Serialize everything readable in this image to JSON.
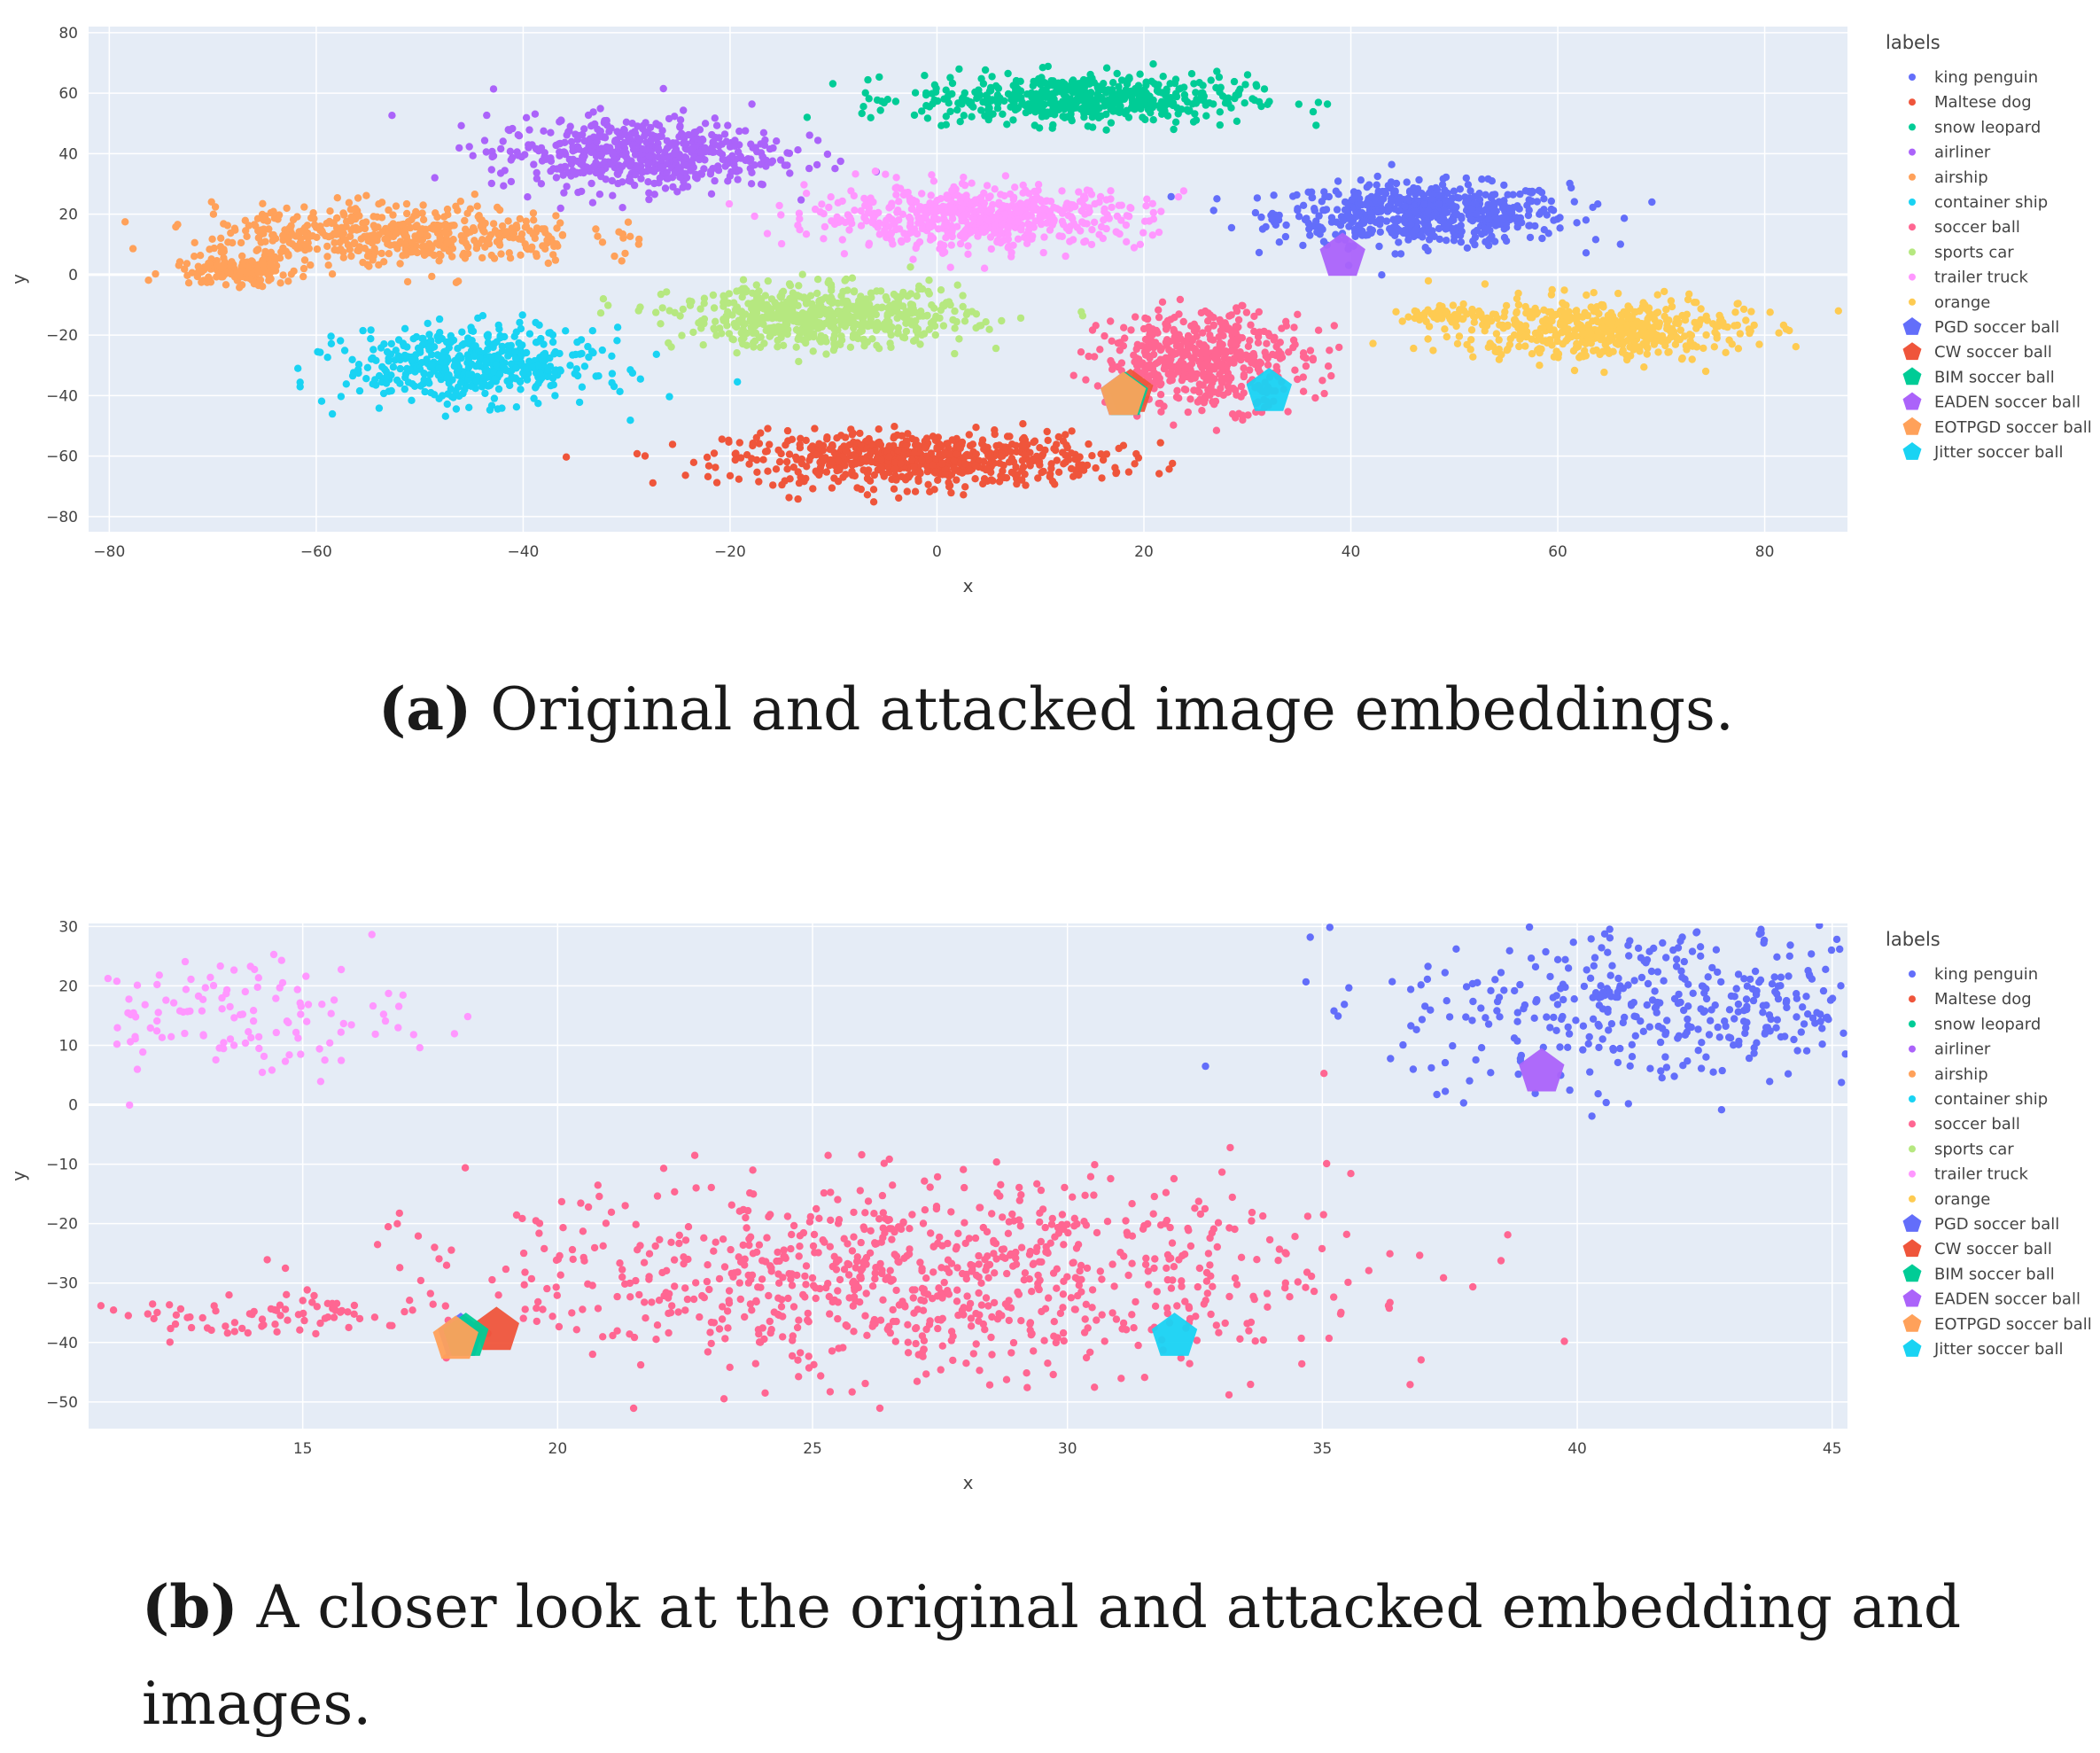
{
  "colors": {
    "king penguin": "#636efa",
    "Maltese dog": "#ef553b",
    "snow leopard": "#00cc96",
    "airliner": "#ab63fa",
    "airship": "#ffa15a",
    "container ship": "#19d3f3",
    "soccer ball": "#ff6692",
    "sports car": "#b6e880",
    "trailer truck": "#ff97ff",
    "orange": "#fecb52",
    "PGD soccer ball": "#636efa",
    "CW soccer ball": "#ef553b",
    "BIM soccer ball": "#00cc96",
    "EADEN soccer ball": "#ab63fa",
    "EOTPGD soccer ball": "#ffa15a",
    "Jitter soccer ball": "#19d3f3"
  },
  "captions": {
    "a": {
      "label": "(a)",
      "text": "Original and attacked image embeddings."
    },
    "b": {
      "label": "(b)",
      "text": "A closer look at the original and attacked embedding and",
      "text2": "images."
    }
  },
  "chart_data": [
    {
      "type": "scatter",
      "xlabel": "x",
      "ylabel": "y",
      "xlim": [
        -82,
        88
      ],
      "ylim": [
        -85,
        82
      ],
      "xticks": [
        -80,
        -60,
        -40,
        -20,
        0,
        20,
        40,
        60,
        80
      ],
      "yticks": [
        80,
        60,
        40,
        20,
        0,
        -20,
        -40,
        -60,
        -80
      ],
      "grid": true,
      "legend": {
        "title": "labels",
        "placement": "right",
        "entries": [
          "king penguin",
          "Maltese dog",
          "snow leopard",
          "airliner",
          "airship",
          "container ship",
          "soccer ball",
          "sports car",
          "trailer truck",
          "orange",
          "PGD soccer ball",
          "CW soccer ball",
          "BIM soccer ball",
          "EADEN soccer ball",
          "EOTPGD soccer ball",
          "Jitter soccer ball"
        ]
      },
      "clusters": [
        {
          "label": "king penguin",
          "cx": 47,
          "cy": 20,
          "sx": 7,
          "sy": 5,
          "n": 600
        },
        {
          "label": "Maltese dog",
          "cx": -2,
          "cy": -61,
          "sx": 9,
          "sy": 4.5,
          "n": 650
        },
        {
          "label": "snow leopard",
          "cx": 14,
          "cy": 58,
          "sx": 8,
          "sy": 4,
          "n": 550
        },
        {
          "label": "airliner",
          "cx": -29,
          "cy": 40,
          "sx": 7,
          "sy": 6,
          "n": 550
        },
        {
          "label": "airship",
          "cx": -52,
          "cy": 13,
          "sx": 9,
          "sy": 5,
          "n": 500
        },
        {
          "label": "airship",
          "cx": -68,
          "cy": 1,
          "sx": 3,
          "sy": 2.5,
          "n": 150
        },
        {
          "label": "container ship",
          "cx": -45,
          "cy": -30,
          "sx": 6,
          "sy": 6,
          "n": 500
        },
        {
          "label": "soccer ball",
          "cx": 26,
          "cy": -28,
          "sx": 5,
          "sy": 8,
          "n": 500
        },
        {
          "label": "trailer truck",
          "cx": 4,
          "cy": 19,
          "sx": 8,
          "sy": 5,
          "n": 600
        },
        {
          "label": "sports car",
          "cx": -11,
          "cy": -14,
          "sx": 7,
          "sy": 5,
          "n": 600
        },
        {
          "label": "orange",
          "cx": 64,
          "cy": -18,
          "sx": 7,
          "sy": 5,
          "n": 500
        },
        {
          "label": "orange",
          "cx": 49,
          "cy": -13,
          "sx": 2,
          "sy": 1.2,
          "n": 50
        }
      ],
      "attacks": [
        {
          "label": "PGD soccer ball",
          "x": 18,
          "y": -40
        },
        {
          "label": "CW soccer ball",
          "x": 18.7,
          "y": -39
        },
        {
          "label": "BIM soccer ball",
          "x": 18.2,
          "y": -40
        },
        {
          "label": "EADEN soccer ball",
          "x": 39.2,
          "y": 6
        },
        {
          "label": "EOTPGD soccer ball",
          "x": 18,
          "y": -40
        },
        {
          "label": "Jitter soccer ball",
          "x": 32.1,
          "y": -38.7
        }
      ]
    },
    {
      "type": "scatter",
      "xlabel": "x",
      "ylabel": "y",
      "xlim": [
        10.8,
        45.3
      ],
      "ylim": [
        -54.5,
        30.5
      ],
      "xticks": [
        15,
        20,
        25,
        30,
        35,
        40,
        45
      ],
      "yticks": [
        30,
        20,
        10,
        0,
        -10,
        -20,
        -30,
        -40,
        -50
      ],
      "grid": true,
      "legend": {
        "title": "labels",
        "placement": "right",
        "entries": [
          "king penguin",
          "Maltese dog",
          "snow leopard",
          "airliner",
          "airship",
          "container ship",
          "soccer ball",
          "sports car",
          "trailer truck",
          "orange",
          "PGD soccer ball",
          "CW soccer ball",
          "BIM soccer ball",
          "EADEN soccer ball",
          "EOTPGD soccer ball",
          "Jitter soccer ball"
        ]
      },
      "clusters": [
        {
          "label": "soccer ball",
          "cx": 27,
          "cy": -29,
          "sx": 4.2,
          "sy": 8,
          "n": 900
        },
        {
          "label": "soccer ball",
          "cx": 14,
          "cy": -36,
          "sx": 1.8,
          "sy": 2,
          "n": 80
        },
        {
          "label": "king penguin",
          "cx": 42,
          "cy": 17,
          "sx": 2.8,
          "sy": 7,
          "n": 450
        },
        {
          "label": "trailer truck",
          "cx": 13.5,
          "cy": 15,
          "sx": 1.8,
          "sy": 5,
          "n": 130
        }
      ],
      "attacks": [
        {
          "label": "PGD soccer ball",
          "x": 18.1,
          "y": -39
        },
        {
          "label": "CW soccer ball",
          "x": 18.8,
          "y": -38
        },
        {
          "label": "BIM soccer ball",
          "x": 18.2,
          "y": -39
        },
        {
          "label": "EADEN soccer ball",
          "x": 39.3,
          "y": 5.5
        },
        {
          "label": "EOTPGD soccer ball",
          "x": 18,
          "y": -39.5
        },
        {
          "label": "Jitter soccer ball",
          "x": 32.1,
          "y": -39
        }
      ]
    }
  ]
}
